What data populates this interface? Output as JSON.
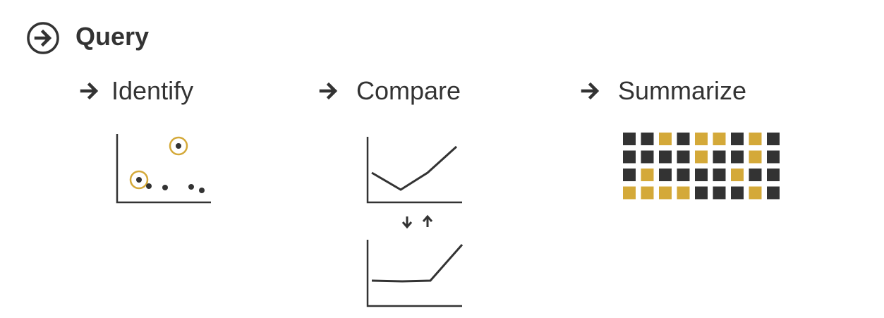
{
  "header": {
    "title": "Query",
    "icon": "circled-arrow-right-icon"
  },
  "categories": [
    {
      "label": "Identify",
      "icon": "arrow-right-icon"
    },
    {
      "label": "Compare",
      "icon": "arrow-right-icon"
    },
    {
      "label": "Summarize",
      "icon": "arrow-right-icon"
    }
  ],
  "colors": {
    "dark": "#333333",
    "accent": "#D4A939"
  },
  "summarize_grid": [
    [
      "dark",
      "dark",
      "gold",
      "dark",
      "gold",
      "gold",
      "dark",
      "gold",
      "dark"
    ],
    [
      "dark",
      "dark",
      "dark",
      "dark",
      "gold",
      "dark",
      "dark",
      "gold",
      "dark"
    ],
    [
      "dark",
      "gold",
      "dark",
      "dark",
      "dark",
      "dark",
      "gold",
      "dark",
      "dark"
    ],
    [
      "gold",
      "gold",
      "gold",
      "gold",
      "dark",
      "dark",
      "dark",
      "gold",
      "dark"
    ]
  ]
}
